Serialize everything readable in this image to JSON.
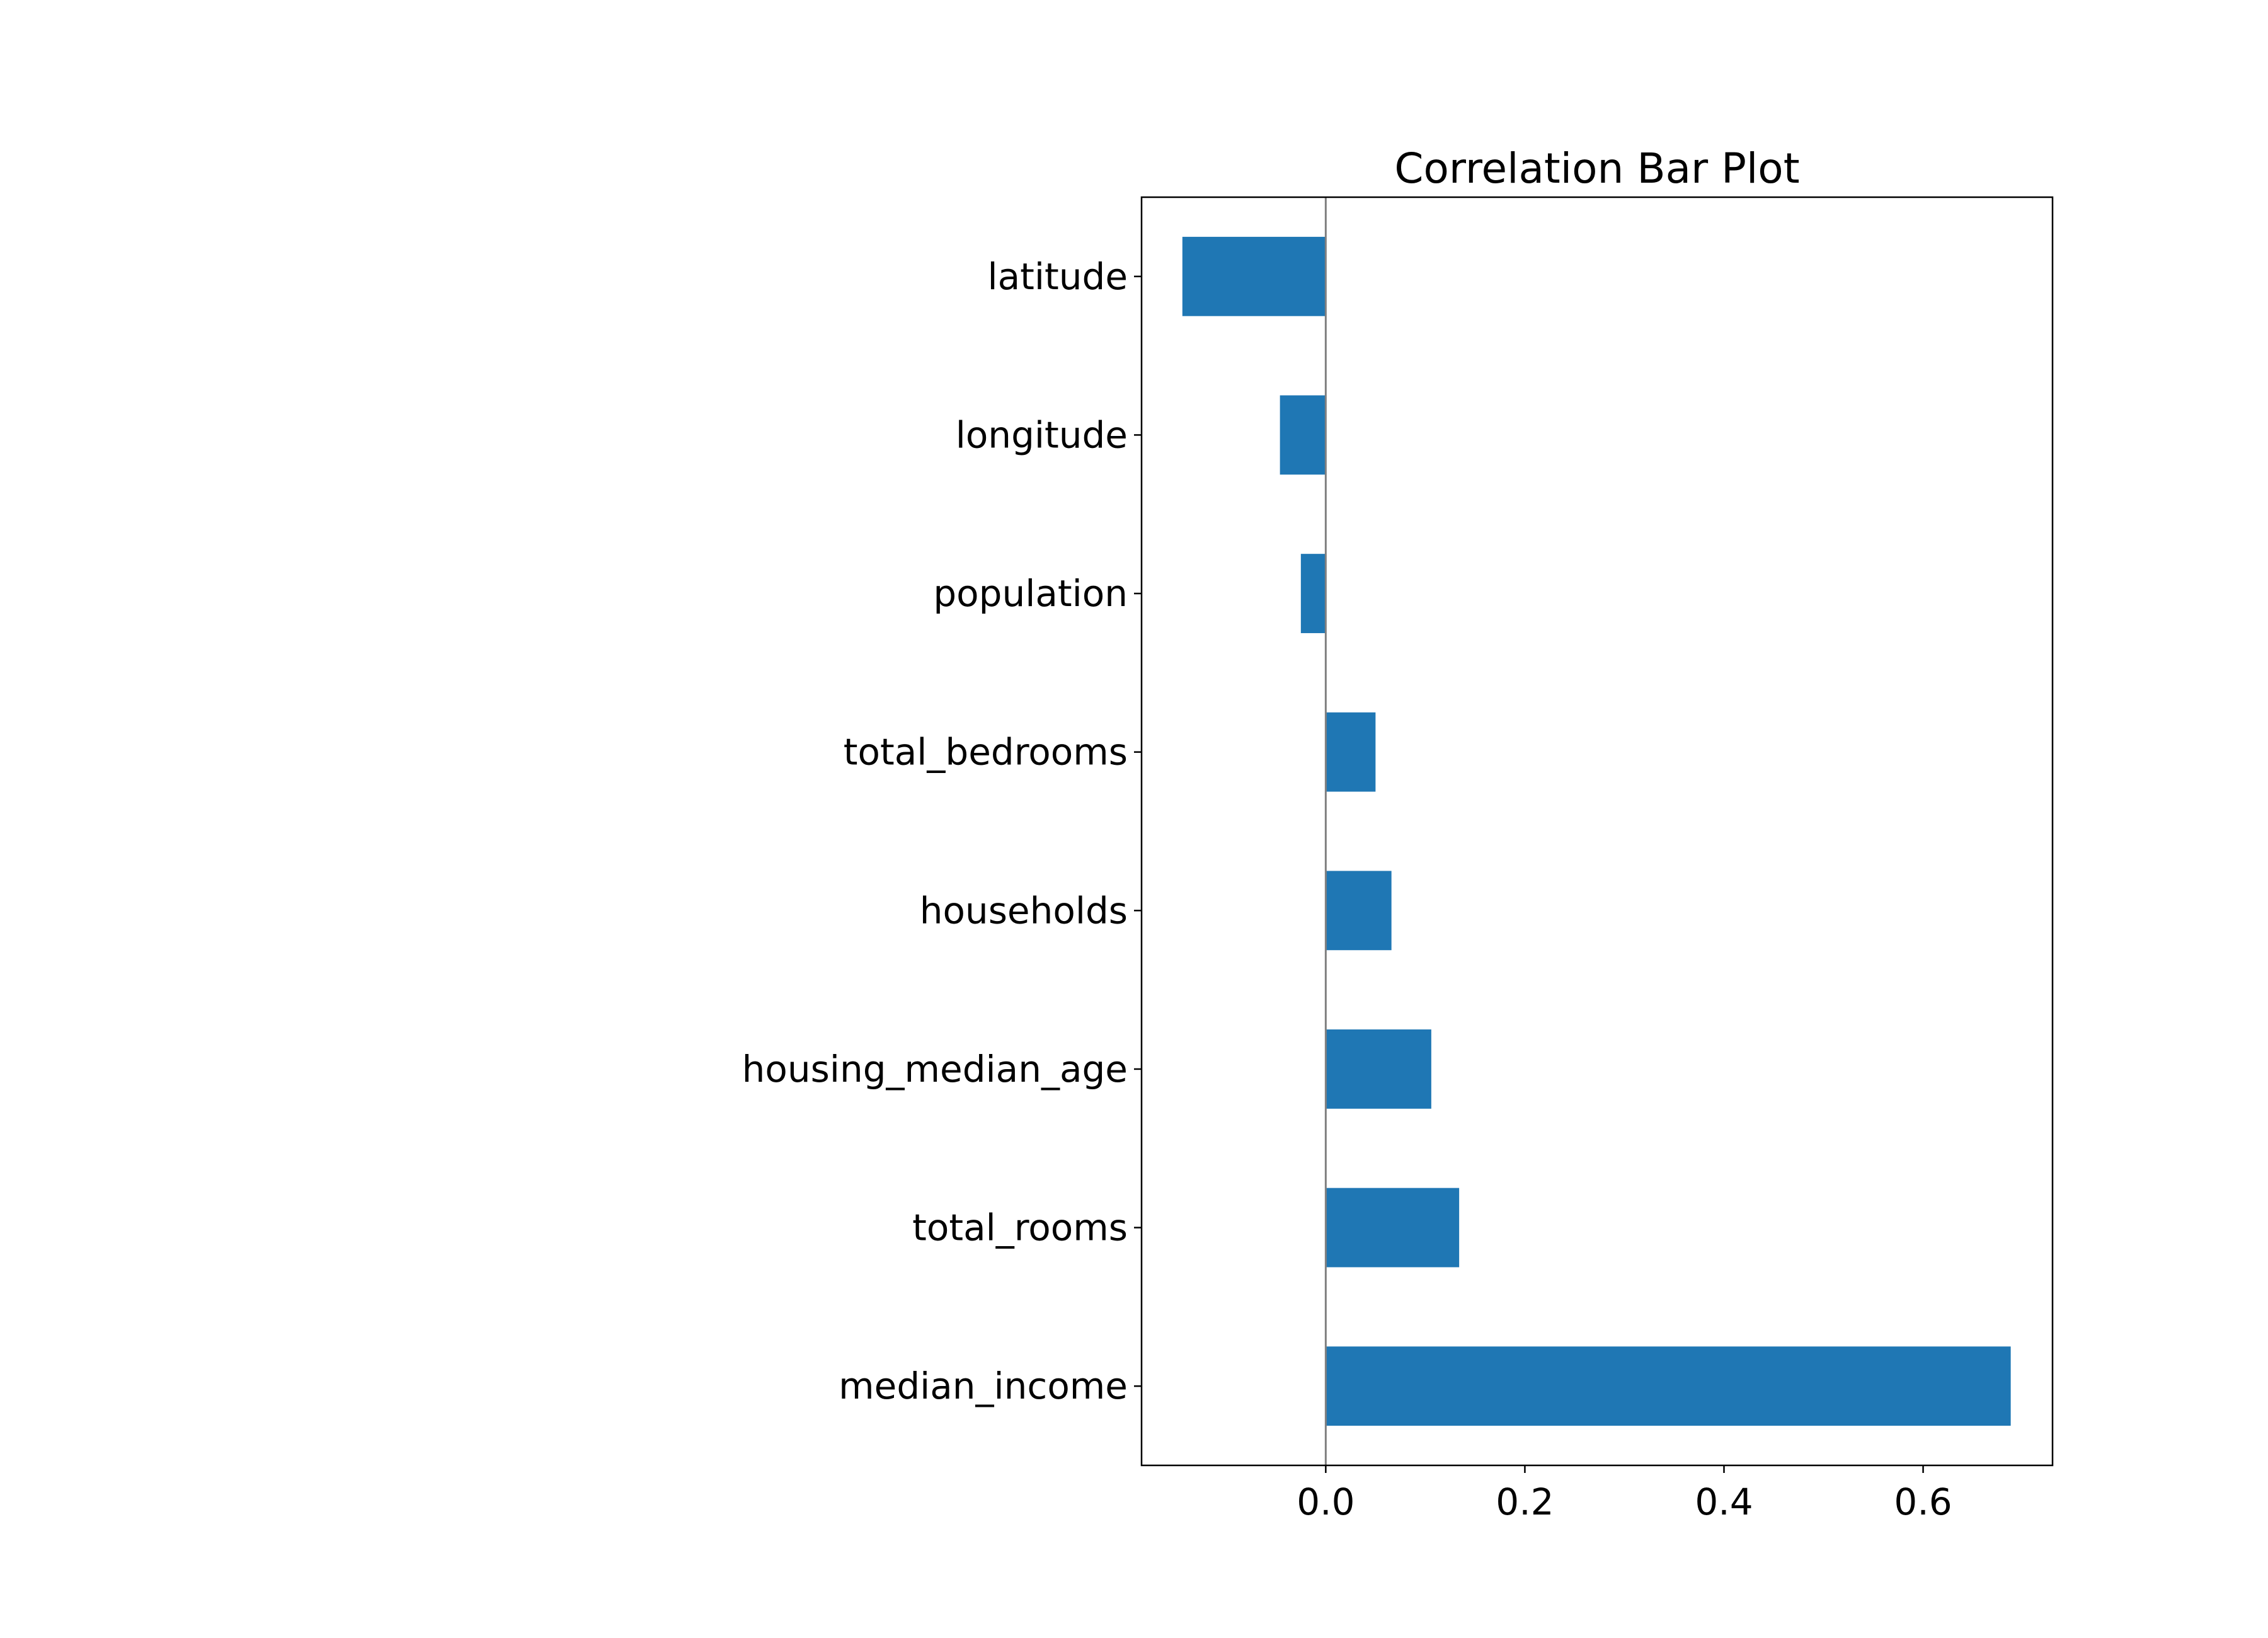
{
  "chart_data": {
    "type": "bar",
    "orientation": "horizontal",
    "title": "Correlation Bar Plot",
    "xlabel": "",
    "ylabel": "",
    "categories": [
      "latitude",
      "longitude",
      "population",
      "total_bedrooms",
      "households",
      "housing_median_age",
      "total_rooms",
      "median_income"
    ],
    "values": [
      -0.144,
      -0.046,
      -0.025,
      0.05,
      0.066,
      0.106,
      0.134,
      0.688
    ],
    "xlim": [
      -0.185,
      0.73
    ],
    "xticks": [
      0.0,
      0.2,
      0.4,
      0.6
    ],
    "xtick_labels": [
      "0.0",
      "0.2",
      "0.4",
      "0.6"
    ],
    "grid": false,
    "zero_line": true,
    "colors": {
      "bar": "#1f77b4",
      "zero_line": "#808080",
      "axes": "#000000",
      "text": "#000000"
    }
  }
}
